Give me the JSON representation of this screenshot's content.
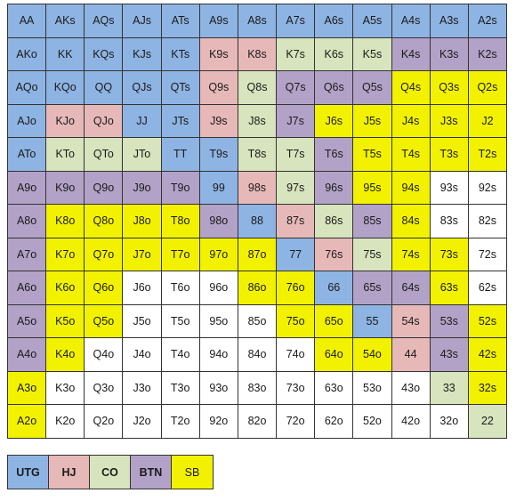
{
  "colors": {
    "UTG": "#8eb4e3",
    "HJ": "#e6b9b8",
    "CO": "#d7e4bd",
    "BTN": "#b3a2c7",
    "SB": "#f2f200",
    "W": "#ffffff"
  },
  "grid": {
    "rows": [
      [
        "AA",
        "AKs",
        "AQs",
        "AJs",
        "ATs",
        "A9s",
        "A8s",
        "A7s",
        "A6s",
        "A5s",
        "A4s",
        "A3s",
        "A2s"
      ],
      [
        "AKo",
        "KK",
        "KQs",
        "KJs",
        "KTs",
        "K9s",
        "K8s",
        "K7s",
        "K6s",
        "K5s",
        "K4s",
        "K3s",
        "K2s"
      ],
      [
        "AQo",
        "KQo",
        "QQ",
        "QJs",
        "QTs",
        "Q9s",
        "Q8s",
        "Q7s",
        "Q6s",
        "Q5s",
        "Q4s",
        "Q3s",
        "Q2s"
      ],
      [
        "AJo",
        "KJo",
        "QJo",
        "JJ",
        "JTs",
        "J9s",
        "J8s",
        "J7s",
        "J6s",
        "J5s",
        "J4s",
        "J3s",
        "J2"
      ],
      [
        "ATo",
        "KTo",
        "QTo",
        "JTo",
        "TT",
        "T9s",
        "T8s",
        "T7s",
        "T6s",
        "T5s",
        "T4s",
        "T3s",
        "T2s"
      ],
      [
        "A9o",
        "K9o",
        "Q9o",
        "J9o",
        "T9o",
        "99",
        "98s",
        "97s",
        "96s",
        "95s",
        "94s",
        "93s",
        "92s"
      ],
      [
        "A8o",
        "K8o",
        "Q8o",
        "J8o",
        "T8o",
        "98o",
        "88",
        "87s",
        "86s",
        "85s",
        "84s",
        "83s",
        "82s"
      ],
      [
        "A7o",
        "K7o",
        "Q7o",
        "J7o",
        "T7o",
        "97o",
        "87o",
        "77",
        "76s",
        "75s",
        "74s",
        "73s",
        "72s"
      ],
      [
        "A6o",
        "K6o",
        "Q6o",
        "J6o",
        "T6o",
        "96o",
        "86o",
        "76o",
        "66",
        "65s",
        "64s",
        "63s",
        "62s"
      ],
      [
        "A5o",
        "K5o",
        "Q5o",
        "J5o",
        "T5o",
        "95o",
        "85o",
        "75o",
        "65o",
        "55",
        "54s",
        "53s",
        "52s"
      ],
      [
        "A4o",
        "K4o",
        "Q4o",
        "J4o",
        "T4o",
        "94o",
        "84o",
        "74o",
        "64o",
        "54o",
        "44",
        "43s",
        "42s"
      ],
      [
        "A3o",
        "K3o",
        "Q3o",
        "J3o",
        "T3o",
        "93o",
        "83o",
        "73o",
        "63o",
        "53o",
        "43o",
        "33",
        "32s"
      ],
      [
        "A2o",
        "K2o",
        "Q2o",
        "J2o",
        "T2o",
        "92o",
        "82o",
        "72o",
        "62o",
        "52o",
        "42o",
        "32o",
        "22"
      ]
    ],
    "positions": [
      [
        "UTG",
        "UTG",
        "UTG",
        "UTG",
        "UTG",
        "UTG",
        "UTG",
        "UTG",
        "UTG",
        "UTG",
        "UTG",
        "UTG",
        "UTG"
      ],
      [
        "UTG",
        "UTG",
        "UTG",
        "UTG",
        "UTG",
        "HJ",
        "HJ",
        "CO",
        "CO",
        "CO",
        "BTN",
        "BTN",
        "BTN"
      ],
      [
        "UTG",
        "UTG",
        "UTG",
        "UTG",
        "UTG",
        "HJ",
        "CO",
        "BTN",
        "BTN",
        "BTN",
        "SB",
        "SB",
        "SB"
      ],
      [
        "UTG",
        "HJ",
        "HJ",
        "UTG",
        "UTG",
        "HJ",
        "CO",
        "BTN",
        "SB",
        "SB",
        "SB",
        "SB",
        "SB"
      ],
      [
        "UTG",
        "CO",
        "CO",
        "CO",
        "UTG",
        "UTG",
        "CO",
        "CO",
        "BTN",
        "SB",
        "SB",
        "SB",
        "SB"
      ],
      [
        "BTN",
        "BTN",
        "BTN",
        "BTN",
        "BTN",
        "UTG",
        "HJ",
        "CO",
        "BTN",
        "SB",
        "SB",
        "W",
        "W"
      ],
      [
        "BTN",
        "SB",
        "SB",
        "SB",
        "SB",
        "BTN",
        "UTG",
        "HJ",
        "CO",
        "BTN",
        "SB",
        "W",
        "W"
      ],
      [
        "BTN",
        "SB",
        "SB",
        "SB",
        "SB",
        "SB",
        "SB",
        "UTG",
        "HJ",
        "CO",
        "SB",
        "SB",
        "W"
      ],
      [
        "BTN",
        "SB",
        "SB",
        "W",
        "W",
        "W",
        "SB",
        "SB",
        "UTG",
        "BTN",
        "BTN",
        "SB",
        "W"
      ],
      [
        "BTN",
        "SB",
        "SB",
        "W",
        "W",
        "W",
        "W",
        "SB",
        "SB",
        "UTG",
        "HJ",
        "BTN",
        "SB"
      ],
      [
        "BTN",
        "SB",
        "W",
        "W",
        "W",
        "W",
        "W",
        "W",
        "SB",
        "SB",
        "HJ",
        "BTN",
        "SB"
      ],
      [
        "SB",
        "W",
        "W",
        "W",
        "W",
        "W",
        "W",
        "W",
        "W",
        "W",
        "W",
        "CO",
        "SB"
      ],
      [
        "SB",
        "W",
        "W",
        "W",
        "W",
        "W",
        "W",
        "W",
        "W",
        "W",
        "W",
        "W",
        "CO"
      ]
    ]
  },
  "legend": [
    {
      "key": "UTG",
      "label": "UTG"
    },
    {
      "key": "HJ",
      "label": "HJ"
    },
    {
      "key": "CO",
      "label": "CO"
    },
    {
      "key": "BTN",
      "label": "BTN"
    },
    {
      "key": "SB",
      "label": "SB"
    }
  ]
}
